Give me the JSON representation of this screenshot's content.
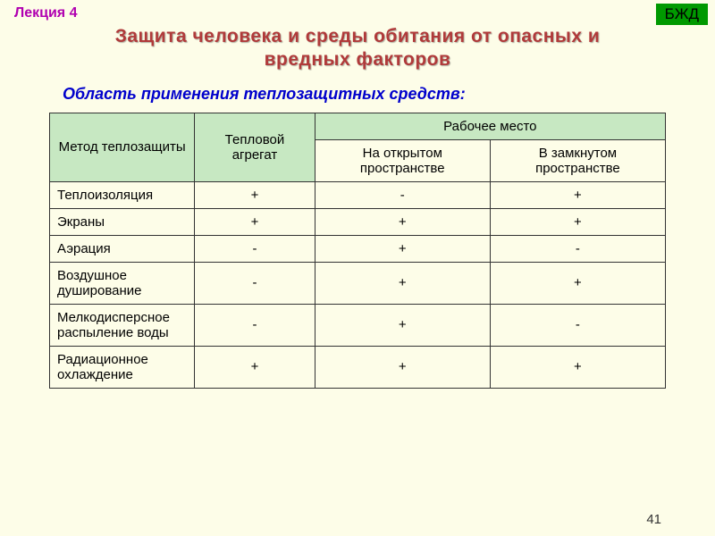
{
  "lecture_label": "Лекция  4",
  "badge": "БЖД",
  "title_line1": "Защита  человека  и  среды  обитания  от  опасных  и",
  "title_line2": "вредных  факторов",
  "subtitle": "Область применения теплозащитных средств:",
  "table": {
    "headers": {
      "method": "Метод теплозащиты",
      "aggregate": "Тепловой агрегат",
      "workplace": "Рабочее место",
      "open_space": "На открытом пространстве",
      "closed_space": "В замкнутом пространстве"
    },
    "rows": [
      {
        "method": "Теплоизоляция",
        "agg": "+",
        "open": "-",
        "closed": "+"
      },
      {
        "method": "Экраны",
        "agg": "+",
        "open": "+",
        "closed": "+"
      },
      {
        "method": "Аэрация",
        "agg": "-",
        "open": "+",
        "closed": "-"
      },
      {
        "method": "Воздушное душирование",
        "agg": "-",
        "open": "+",
        "closed": "+"
      },
      {
        "method": "Мелкодисперсное распыление воды",
        "agg": "-",
        "open": "+",
        "closed": "-"
      },
      {
        "method": "Радиационное охлаждение",
        "agg": "+",
        "open": "+",
        "closed": "+"
      }
    ]
  },
  "page_number": "41",
  "colors": {
    "background": "#fdfde8",
    "lecture_label": "#b000b0",
    "badge_bg": "#009900",
    "title": "#b03a3a",
    "subtitle": "#0000cc",
    "header_bg": "#c7e8c2",
    "border": "#333333"
  }
}
